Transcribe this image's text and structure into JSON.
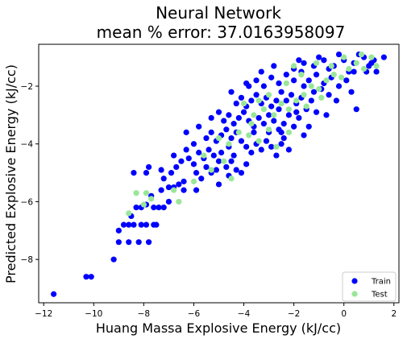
{
  "chart_data": {
    "type": "scatter",
    "title": "Neural Network",
    "subtitle": "mean % error: 37.0163958097",
    "xlabel": "Huang Massa Explosive Energy (kJ/cc)",
    "ylabel": "Predicted Explosive Energy (kJ/cc)",
    "xlim": [
      -12.2,
      2.2
    ],
    "ylim": [
      -9.5,
      -0.55
    ],
    "xticks": [
      -12,
      -10,
      -8,
      -6,
      -4,
      -2,
      0,
      2
    ],
    "yticks": [
      -8,
      -6,
      -4,
      -2
    ],
    "grid": false,
    "legend_position": "bottom-right",
    "series": [
      {
        "name": "Train",
        "color": "#0000ff",
        "points": [
          [
            -11.6,
            -9.2
          ],
          [
            -10.3,
            -8.6
          ],
          [
            -10.1,
            -8.6
          ],
          [
            -9.2,
            -8.0
          ],
          [
            -9.0,
            -7.4
          ],
          [
            -8.6,
            -7.4
          ],
          [
            -8.2,
            -7.4
          ],
          [
            -7.8,
            -7.4
          ],
          [
            -8.8,
            -6.8
          ],
          [
            -8.6,
            -6.8
          ],
          [
            -8.4,
            -6.8
          ],
          [
            -8.1,
            -6.8
          ],
          [
            -7.9,
            -6.8
          ],
          [
            -7.6,
            -6.8
          ],
          [
            -7.5,
            -6.8
          ],
          [
            -9.0,
            -7.0
          ],
          [
            -8.5,
            -6.5
          ],
          [
            -8.3,
            -6.2
          ],
          [
            -8.1,
            -6.2
          ],
          [
            -7.9,
            -6.1
          ],
          [
            -7.6,
            -6.2
          ],
          [
            -7.4,
            -6.2
          ],
          [
            -7.2,
            -6.2
          ],
          [
            -7.0,
            -6.0
          ],
          [
            -7.7,
            -5.8
          ],
          [
            -7.3,
            -5.6
          ],
          [
            -7.0,
            -5.5
          ],
          [
            -6.8,
            -5.5
          ],
          [
            -6.6,
            -5.4
          ],
          [
            -6.4,
            -5.6
          ],
          [
            -8.4,
            -5.0
          ],
          [
            -7.9,
            -5.0
          ],
          [
            -7.8,
            -4.8
          ],
          [
            -7.2,
            -5.2
          ],
          [
            -6.9,
            -5.0
          ],
          [
            -6.7,
            -4.8
          ],
          [
            -6.5,
            -4.6
          ],
          [
            -6.2,
            -4.5
          ],
          [
            -6.0,
            -4.7
          ],
          [
            -5.9,
            -5.0
          ],
          [
            -5.7,
            -5.2
          ],
          [
            -5.5,
            -4.8
          ],
          [
            -5.3,
            -5.0
          ],
          [
            -5.1,
            -4.9
          ],
          [
            -6.3,
            -4.2
          ],
          [
            -6.0,
            -4.0
          ],
          [
            -5.8,
            -4.3
          ],
          [
            -5.6,
            -4.5
          ],
          [
            -5.4,
            -4.2
          ],
          [
            -5.2,
            -4.4
          ],
          [
            -5.0,
            -4.6
          ],
          [
            -4.9,
            -4.3
          ],
          [
            -4.7,
            -4.8
          ],
          [
            -4.5,
            -4.6
          ],
          [
            -4.3,
            -4.9
          ],
          [
            -4.1,
            -5.0
          ],
          [
            -3.9,
            -4.7
          ],
          [
            -5.5,
            -3.8
          ],
          [
            -5.3,
            -3.6
          ],
          [
            -5.1,
            -3.9
          ],
          [
            -4.9,
            -3.7
          ],
          [
            -4.7,
            -3.5
          ],
          [
            -4.5,
            -3.8
          ],
          [
            -4.3,
            -3.6
          ],
          [
            -4.1,
            -3.9
          ],
          [
            -3.9,
            -4.1
          ],
          [
            -3.7,
            -4.3
          ],
          [
            -3.5,
            -4.0
          ],
          [
            -3.3,
            -4.2
          ],
          [
            -3.1,
            -3.9
          ],
          [
            -2.9,
            -4.1
          ],
          [
            -2.7,
            -4.4
          ],
          [
            -2.5,
            -4.0
          ],
          [
            -4.8,
            -3.2
          ],
          [
            -4.6,
            -3.0
          ],
          [
            -4.4,
            -3.3
          ],
          [
            -4.2,
            -3.1
          ],
          [
            -4.0,
            -2.9
          ],
          [
            -3.8,
            -3.2
          ],
          [
            -3.6,
            -3.4
          ],
          [
            -3.4,
            -3.1
          ],
          [
            -3.2,
            -3.3
          ],
          [
            -3.0,
            -3.0
          ],
          [
            -2.8,
            -3.2
          ],
          [
            -2.6,
            -3.5
          ],
          [
            -2.4,
            -3.3
          ],
          [
            -2.2,
            -3.0
          ],
          [
            -2.0,
            -3.4
          ],
          [
            -1.8,
            -3.1
          ],
          [
            -4.3,
            -2.6
          ],
          [
            -4.1,
            -2.4
          ],
          [
            -3.9,
            -2.7
          ],
          [
            -3.7,
            -2.5
          ],
          [
            -3.5,
            -2.3
          ],
          [
            -3.3,
            -2.6
          ],
          [
            -3.1,
            -2.4
          ],
          [
            -2.9,
            -2.7
          ],
          [
            -2.7,
            -2.5
          ],
          [
            -2.5,
            -2.2
          ],
          [
            -2.3,
            -2.5
          ],
          [
            -2.1,
            -2.3
          ],
          [
            -1.9,
            -2.6
          ],
          [
            -1.7,
            -2.4
          ],
          [
            -1.5,
            -2.8
          ],
          [
            -1.3,
            -2.5
          ],
          [
            -1.1,
            -2.9
          ],
          [
            -3.8,
            -2.0
          ],
          [
            -3.5,
            -1.8
          ],
          [
            -3.2,
            -2.0
          ],
          [
            -2.9,
            -1.7
          ],
          [
            -2.6,
            -1.9
          ],
          [
            -2.3,
            -1.6
          ],
          [
            -2.0,
            -1.8
          ],
          [
            -1.7,
            -1.5
          ],
          [
            -1.4,
            -1.8
          ],
          [
            -1.1,
            -1.6
          ],
          [
            -0.8,
            -1.9
          ],
          [
            -0.5,
            -1.7
          ],
          [
            -0.2,
            -2.0
          ],
          [
            0.1,
            -1.8
          ],
          [
            -2.0,
            -1.4
          ],
          [
            -1.6,
            -1.2
          ],
          [
            -1.2,
            -1.3
          ],
          [
            -0.8,
            -1.1
          ],
          [
            -0.4,
            -1.3
          ],
          [
            0.0,
            -1.1
          ],
          [
            0.4,
            -1.2
          ],
          [
            0.8,
            -1.0
          ],
          [
            1.2,
            -1.1
          ],
          [
            1.6,
            -1.0
          ],
          [
            -1.0,
            -1.0
          ],
          [
            -0.2,
            -0.9
          ],
          [
            0.6,
            -0.9
          ],
          [
            1.0,
            -1.3
          ],
          [
            -0.6,
            -2.3
          ],
          [
            -0.3,
            -2.5
          ],
          [
            0.3,
            -2.2
          ],
          [
            0.5,
            -2.8
          ],
          [
            0.2,
            -1.5
          ],
          [
            -2.2,
            -4.2
          ],
          [
            -2.4,
            -3.8
          ],
          [
            -1.6,
            -3.7
          ],
          [
            -5.9,
            -5.6
          ],
          [
            -6.4,
            -5.3
          ],
          [
            -5.0,
            -5.4
          ],
          [
            -4.6,
            -5.1
          ],
          [
            -3.6,
            -3.6
          ],
          [
            -3.0,
            -3.6
          ],
          [
            -2.6,
            -2.8
          ],
          [
            -1.9,
            -2.9
          ],
          [
            -1.2,
            -2.2
          ],
          [
            -0.9,
            -2.1
          ],
          [
            -0.6,
            -1.4
          ],
          [
            0.9,
            -1.5
          ],
          [
            1.3,
            -1.5
          ],
          [
            -4.6,
            -4.1
          ],
          [
            -4.4,
            -4.4
          ],
          [
            -5.8,
            -3.4
          ],
          [
            -6.3,
            -3.6
          ],
          [
            -5.0,
            -2.9
          ],
          [
            -3.3,
            -1.5
          ],
          [
            -2.8,
            -1.3
          ],
          [
            -1.8,
            -1.1
          ],
          [
            -6.8,
            -4.4
          ],
          [
            -7.3,
            -4.9
          ],
          [
            -5.3,
            -3.1
          ],
          [
            -4.5,
            -2.2
          ],
          [
            -3.9,
            -1.9
          ],
          [
            -2.5,
            -3.6
          ],
          [
            -1.4,
            -3.4
          ],
          [
            -0.7,
            -3.0
          ],
          [
            -1.6,
            -2.0
          ],
          [
            0.4,
            -1.5
          ],
          [
            1.1,
            -1.2
          ]
        ]
      },
      {
        "name": "Test",
        "color": "#99e699",
        "points": [
          [
            -8.6,
            -6.4
          ],
          [
            -8.3,
            -5.7
          ],
          [
            -7.9,
            -5.7
          ],
          [
            -7.7,
            -5.9
          ],
          [
            -8.0,
            -6.1
          ],
          [
            -6.8,
            -5.6
          ],
          [
            -6.6,
            -6.0
          ],
          [
            -6.0,
            -5.3
          ],
          [
            -5.3,
            -4.9
          ],
          [
            -4.5,
            -5.2
          ],
          [
            -5.6,
            -4.4
          ],
          [
            -4.8,
            -4.6
          ],
          [
            -5.0,
            -3.8
          ],
          [
            -4.6,
            -4.0
          ],
          [
            -4.2,
            -3.6
          ],
          [
            -3.8,
            -3.7
          ],
          [
            -3.4,
            -3.9
          ],
          [
            -3.0,
            -3.5
          ],
          [
            -3.6,
            -3.0
          ],
          [
            -3.2,
            -2.8
          ],
          [
            -2.8,
            -3.0
          ],
          [
            -2.5,
            -2.6
          ],
          [
            -2.2,
            -2.8
          ],
          [
            -1.9,
            -2.5
          ],
          [
            -1.6,
            -2.3
          ],
          [
            -1.3,
            -2.0
          ],
          [
            -1.0,
            -2.1
          ],
          [
            -0.7,
            -1.8
          ],
          [
            -0.4,
            -1.6
          ],
          [
            -0.1,
            -1.7
          ],
          [
            0.2,
            -1.4
          ],
          [
            0.5,
            -1.2
          ],
          [
            0.8,
            -1.4
          ],
          [
            1.1,
            -1.0
          ],
          [
            1.3,
            -1.3
          ],
          [
            -2.0,
            -1.3
          ],
          [
            -1.7,
            -1.6
          ],
          [
            -2.3,
            -1.9
          ],
          [
            -3.0,
            -2.3
          ],
          [
            -3.4,
            -2.5
          ],
          [
            -4.0,
            -2.6
          ],
          [
            -2.7,
            -4.1
          ],
          [
            -2.2,
            -3.6
          ],
          [
            -1.5,
            -2.7
          ],
          [
            -0.9,
            -2.4
          ],
          [
            -0.5,
            -1.3
          ],
          [
            0.0,
            -1.0
          ],
          [
            0.7,
            -0.9
          ],
          [
            -1.1,
            -1.2
          ],
          [
            -3.7,
            -3.3
          ]
        ]
      }
    ]
  }
}
